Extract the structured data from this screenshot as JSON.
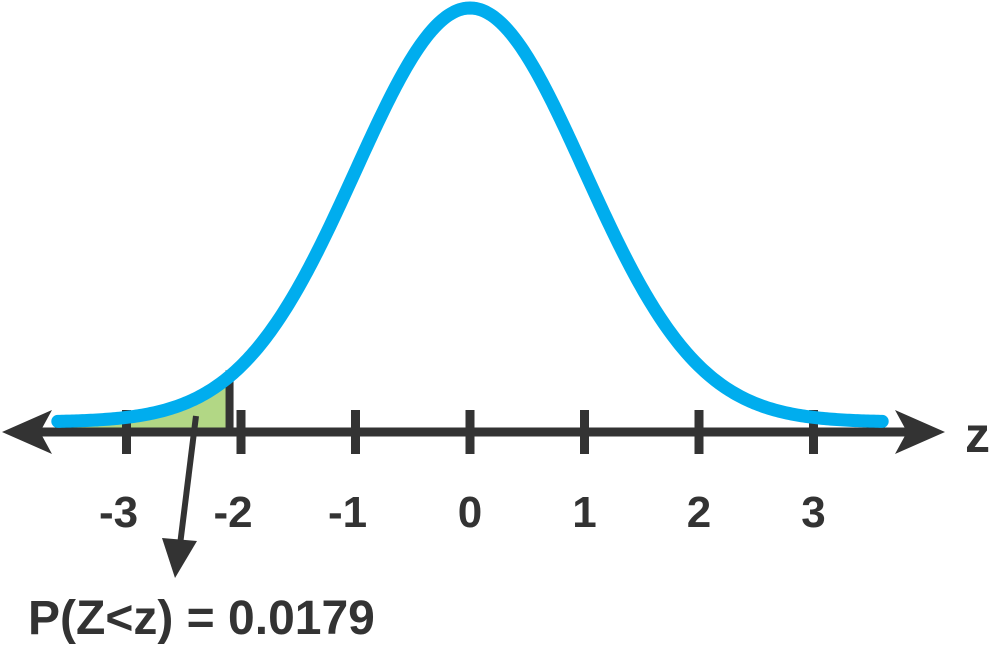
{
  "chart_data": {
    "type": "area",
    "curve": "standard normal density",
    "x_ticks": [
      -3,
      -2,
      -1,
      0,
      1,
      2,
      3
    ],
    "tick_labels": [
      "-3",
      "-2",
      "-1",
      "0",
      "1",
      "2",
      "3"
    ],
    "xlim": [
      -3.6,
      3.6
    ],
    "axis_label": "z",
    "shaded_region": {
      "from": -3.6,
      "to": -2.1
    },
    "annotation": "P(Z<z) = 0.0179",
    "colors": {
      "curve": "#00adee",
      "shaded": "#b2d785",
      "axis": "#333333",
      "text": "#333333"
    }
  }
}
